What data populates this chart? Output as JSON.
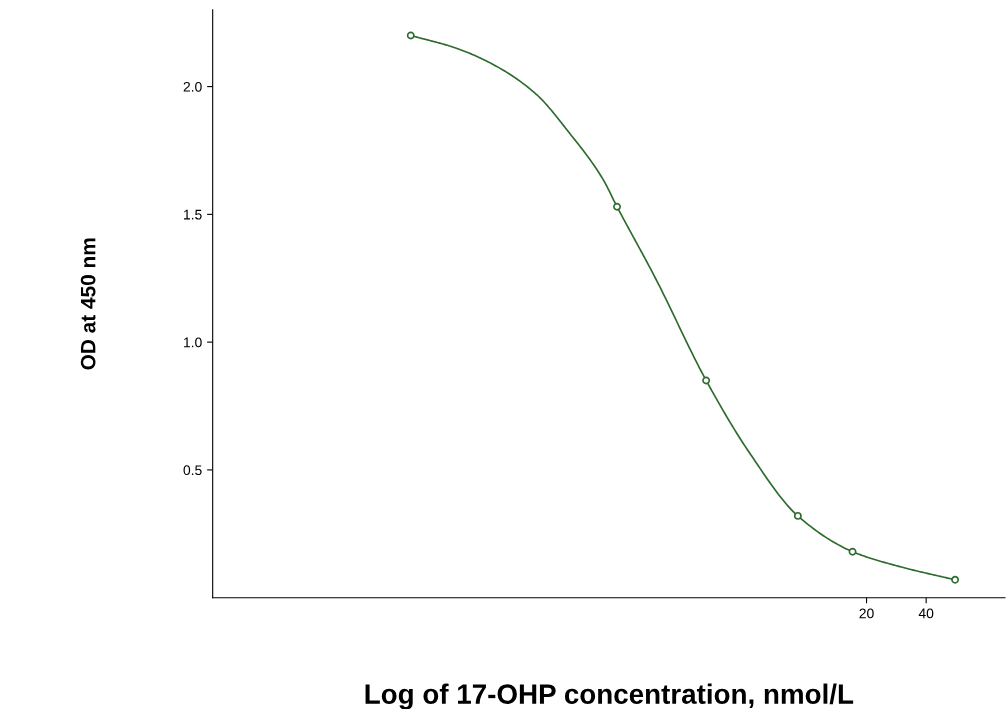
{
  "chart_data": {
    "type": "scatter",
    "xlabel": "Log of 17-OHP concentration, nmol/L",
    "ylabel": "OD at 450 nm",
    "log": "x",
    "xlim": [
      0.01,
      100
    ],
    "xticks": [
      20,
      40
    ],
    "ylim": [
      0,
      2.3
    ],
    "yticks": [
      {
        "value": 0.5,
        "label": "0.5"
      },
      {
        "value": 1.0,
        "label": "1.0"
      },
      {
        "value": 1.5,
        "label": "1.5"
      },
      {
        "value": 2.0,
        "label": "2.0"
      }
    ],
    "grid": false,
    "marker": "circle",
    "series": [
      {
        "color": "#2e6b2e",
        "x": [
          0.1,
          1.1,
          3.1,
          9,
          17,
          56
        ],
        "values": [
          2.2,
          1.53,
          0.85,
          0.32,
          0.18,
          0.07
        ]
      },
      {
        "type": "line",
        "color": "#2e6b2e",
        "marker": "none",
        "x": [
          0.1,
          0.17,
          0.27,
          0.43,
          0.63,
          0.93,
          1.1,
          1.72,
          3.1,
          5.1,
          9,
          17,
          30,
          56
        ],
        "values": [
          2.2,
          2.15,
          2.08,
          1.97,
          1.82,
          1.64,
          1.53,
          1.25,
          0.85,
          0.57,
          0.32,
          0.18,
          0.12,
          0.07
        ]
      }
    ]
  }
}
